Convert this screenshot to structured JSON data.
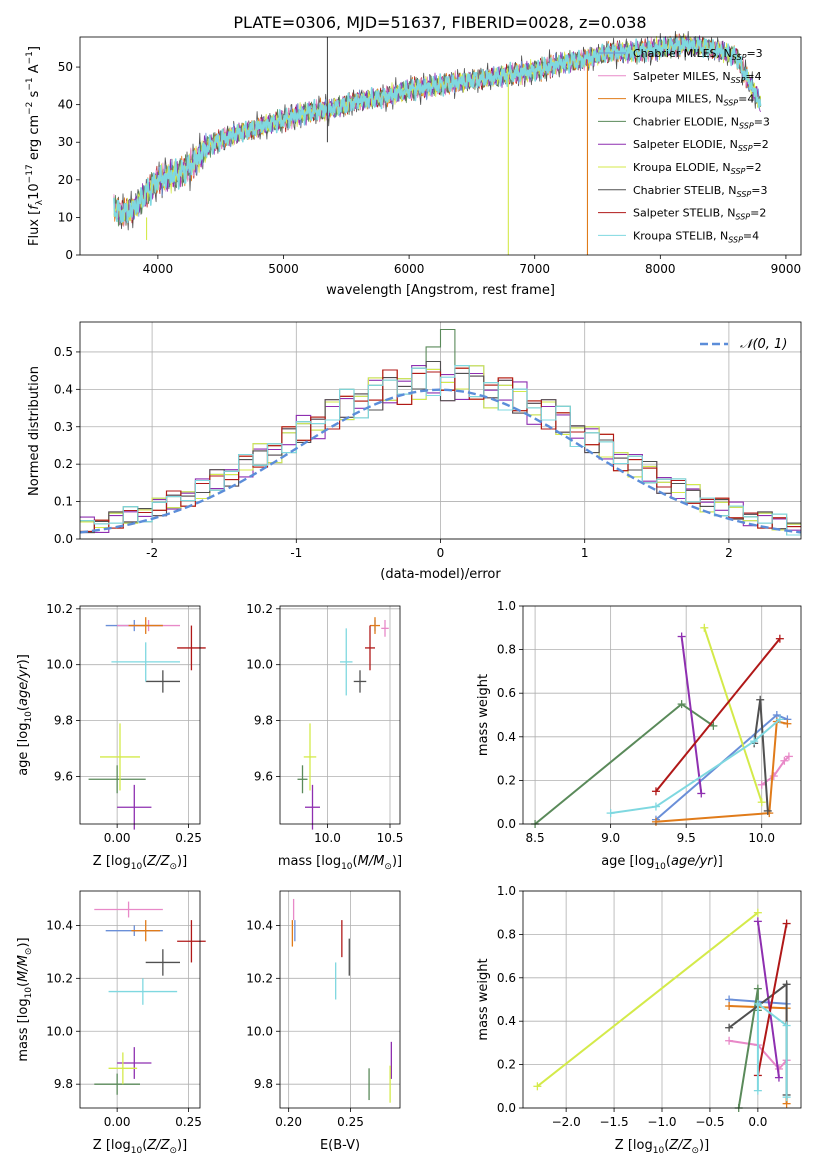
{
  "figure": {
    "title": "PLATE=0306, MJD=51637, FIBERID=0028, z=0.038"
  },
  "series_styles": [
    {
      "name": "Chabrier MILES, N$_{SSP}$=3",
      "label_main": "Chabrier MILES, N",
      "label_sub": "SSP",
      "label_tail": "=3",
      "color": "#6a8fd8"
    },
    {
      "name": "Salpeter MILES, N$_{SSP}$=4",
      "label_main": "Salpeter MILES, N",
      "label_sub": "SSP",
      "label_tail": "=4",
      "color": "#e889c8"
    },
    {
      "name": "Kroupa MILES, N$_{SSP}$=4",
      "label_main": "Kroupa MILES, N",
      "label_sub": "SSP",
      "label_tail": "=4",
      "color": "#e07b1a"
    },
    {
      "name": "Chabrier ELODIE, N$_{SSP}$=3",
      "label_main": "Chabrier ELODIE, N",
      "label_sub": "SSP",
      "label_tail": "=3",
      "color": "#5a8a5a"
    },
    {
      "name": "Salpeter ELODIE, N$_{SSP}$=2",
      "label_main": "Salpeter ELODIE, N",
      "label_sub": "SSP",
      "label_tail": "=2",
      "color": "#8e2fb0"
    },
    {
      "name": "Kroupa ELODIE, N$_{SSP}$=2",
      "label_main": "Kroupa ELODIE, N",
      "label_sub": "SSP",
      "label_tail": "=2",
      "color": "#d4ea4a"
    },
    {
      "name": "Chabrier STELIB, N$_{SSP}$=3",
      "label_main": "Chabrier STELIB, N",
      "label_sub": "SSP",
      "label_tail": "=3",
      "color": "#505050"
    },
    {
      "name": "Salpeter STELIB, N$_{SSP}$=2",
      "label_main": "Salpeter STELIB, N",
      "label_sub": "SSP",
      "label_tail": "=2",
      "color": "#b01818"
    },
    {
      "name": "Kroupa STELIB, N$_{SSP}$=4",
      "label_main": "Kroupa STELIB, N",
      "label_sub": "SSP",
      "label_tail": "=4",
      "color": "#7fd8e0"
    }
  ],
  "chart_data": [
    {
      "id": "spectrum",
      "type": "line",
      "xlabel": "wavelength [Angstrom, rest frame]",
      "ylabel": "Flux [f_λ10^-17 erg cm^-2 s^-1 A^-1]",
      "xlim": [
        3380,
        9120
      ],
      "ylim": [
        0,
        58
      ],
      "xticks": [
        4000,
        5000,
        6000,
        7000,
        8000,
        9000
      ],
      "yticks": [
        0,
        10,
        20,
        30,
        40,
        50
      ],
      "grid": false,
      "legend": "top-right",
      "continuum": {
        "x": [
          3650,
          3700,
          3800,
          3900,
          4000,
          4100,
          4200,
          4300,
          4400,
          4600,
          4800,
          5000,
          5200,
          5400,
          5600,
          5800,
          6000,
          6200,
          6400,
          6600,
          6800,
          7000,
          7200,
          7400,
          7600,
          7800,
          8000,
          8200,
          8400,
          8600,
          8800
        ],
        "y": [
          13,
          11,
          12,
          16,
          20,
          21,
          22,
          25,
          29,
          32,
          34,
          36,
          38,
          39,
          41,
          42,
          44,
          45,
          46,
          47,
          48,
          49,
          51,
          52,
          54,
          54,
          55,
          56,
          55,
          53,
          40
        ]
      },
      "spikes": [
        {
          "series": 6,
          "x": 5350,
          "y_from": 30,
          "y_to": 58
        },
        {
          "series": 5,
          "x": 3910,
          "y_from": 10,
          "y_to": 4
        },
        {
          "series": 5,
          "x": 6790,
          "y_from": 48,
          "y_to": 0
        },
        {
          "series": 2,
          "x": 7420,
          "y_from": 52,
          "y_to": 0
        }
      ]
    },
    {
      "id": "residual-histogram",
      "type": "step",
      "xlabel": "(data-model)/error",
      "ylabel": "Normed distribution",
      "xlim": [
        -2.5,
        2.5
      ],
      "ylim": [
        0,
        0.58
      ],
      "xticks": [
        -2,
        -1,
        0,
        1,
        2
      ],
      "yticks": [
        0.0,
        0.1,
        0.2,
        0.3,
        0.4,
        0.5
      ],
      "grid": true,
      "bin_width": 0.1,
      "normal_curve": {
        "label": "𝒩(0, 1)",
        "mean": 0,
        "sigma": 1,
        "color": "#5b8dd9"
      },
      "bin_jitter": [
        0.02,
        -0.015,
        0.03,
        -0.025,
        0.01,
        0.035,
        -0.02,
        0.015,
        -0.03,
        0.025,
        0.0,
        -0.01,
        0.04,
        -0.035,
        0.02
      ]
    },
    {
      "id": "age-vs-Z",
      "type": "errorbar",
      "xlabel": "Z [log10(Z/Z⊙)]",
      "ylabel": "age  [log10(age/yr)]",
      "xlim": [
        -0.13,
        0.29
      ],
      "ylim": [
        9.43,
        10.21
      ],
      "xticks": [
        0.0,
        0.25
      ],
      "xticklabels": [
        "0.00",
        "0.25"
      ],
      "yticks": [
        9.6,
        9.8,
        10.0,
        10.2
      ],
      "yticklabels": [
        "9.6",
        "9.8",
        "10.0",
        "10.2"
      ],
      "points": [
        {
          "series": 0,
          "x": 0.06,
          "y": 10.14,
          "xerr": 0.1,
          "yerr": 0.02
        },
        {
          "series": 1,
          "x": 0.11,
          "y": 10.14,
          "xerr": 0.11,
          "yerr": 0.02
        },
        {
          "series": 2,
          "x": 0.1,
          "y": 10.14,
          "xerr": 0.06,
          "yerr": 0.03
        },
        {
          "series": 3,
          "x": 0.0,
          "y": 9.59,
          "xerr": 0.1,
          "yerr": 0.05
        },
        {
          "series": 4,
          "x": 0.06,
          "y": 9.49,
          "xerr": 0.06,
          "yerr": 0.08
        },
        {
          "series": 5,
          "x": 0.01,
          "y": 9.67,
          "xerr": 0.07,
          "yerr": 0.12
        },
        {
          "series": 6,
          "x": 0.16,
          "y": 9.94,
          "xerr": 0.06,
          "yerr": 0.04
        },
        {
          "series": 7,
          "x": 0.26,
          "y": 10.06,
          "xerr": 0.05,
          "yerr": 0.08
        },
        {
          "series": 8,
          "x": 0.1,
          "y": 10.01,
          "xerr": 0.12,
          "yerr": 0.07
        }
      ]
    },
    {
      "id": "age-vs-mass",
      "type": "errorbar",
      "xlabel": "mass [log10(M/M⊙)]",
      "ylabel": "",
      "xlim": [
        9.62,
        10.58
      ],
      "ylim": [
        9.43,
        10.21
      ],
      "xticks": [
        10.0,
        10.5
      ],
      "xticklabels": [
        "10.0",
        "10.5"
      ],
      "yticks": [
        9.6,
        9.8,
        10.0,
        10.2
      ],
      "yticklabels": [
        "9.6",
        "9.8",
        "10.0",
        "10.2"
      ],
      "points": [
        {
          "series": 0,
          "x": 10.38,
          "y": 10.14,
          "xerr": 0.0,
          "yerr": 0.02
        },
        {
          "series": 1,
          "x": 10.46,
          "y": 10.13,
          "xerr": 0.03,
          "yerr": 0.03
        },
        {
          "series": 2,
          "x": 10.38,
          "y": 10.14,
          "xerr": 0.04,
          "yerr": 0.03
        },
        {
          "series": 3,
          "x": 9.8,
          "y": 9.59,
          "xerr": 0.04,
          "yerr": 0.05
        },
        {
          "series": 4,
          "x": 9.88,
          "y": 9.49,
          "xerr": 0.06,
          "yerr": 0.08
        },
        {
          "series": 5,
          "x": 9.86,
          "y": 9.67,
          "xerr": 0.05,
          "yerr": 0.12
        },
        {
          "series": 6,
          "x": 10.26,
          "y": 9.94,
          "xerr": 0.05,
          "yerr": 0.04
        },
        {
          "series": 7,
          "x": 10.34,
          "y": 10.06,
          "xerr": 0.04,
          "yerr": 0.08
        },
        {
          "series": 8,
          "x": 10.15,
          "y": 10.01,
          "xerr": 0.05,
          "yerr": 0.12
        }
      ]
    },
    {
      "id": "weight-vs-age",
      "type": "line",
      "xlabel": "age  [log10(age/yr)]",
      "ylabel": "mass weight",
      "xlim": [
        8.42,
        10.26
      ],
      "ylim": [
        0,
        1.0
      ],
      "xticks": [
        8.5,
        9.0,
        9.5,
        10.0
      ],
      "xticklabels": [
        "8.5",
        "9.0",
        "9.5",
        "10.0"
      ],
      "yticks": [
        0.0,
        0.2,
        0.4,
        0.6,
        0.8,
        1.0
      ],
      "grid": true,
      "series": [
        {
          "series": 0,
          "x": [
            9.3,
            10.1,
            10.17
          ],
          "y": [
            0.02,
            0.5,
            0.48
          ]
        },
        {
          "series": 1,
          "x": [
            10.0,
            10.08,
            10.15,
            10.18
          ],
          "y": [
            0.18,
            0.22,
            0.29,
            0.31
          ]
        },
        {
          "series": 2,
          "x": [
            9.3,
            10.05,
            10.1,
            10.17
          ],
          "y": [
            0.01,
            0.05,
            0.47,
            0.46
          ]
        },
        {
          "series": 3,
          "x": [
            8.5,
            9.47,
            9.68
          ],
          "y": [
            0.0,
            0.55,
            0.45
          ]
        },
        {
          "series": 4,
          "x": [
            9.47,
            9.6
          ],
          "y": [
            0.86,
            0.14
          ]
        },
        {
          "series": 5,
          "x": [
            9.62,
            10.0
          ],
          "y": [
            0.9,
            0.1
          ]
        },
        {
          "series": 6,
          "x": [
            9.95,
            9.99,
            10.04
          ],
          "y": [
            0.37,
            0.57,
            0.06
          ]
        },
        {
          "series": 7,
          "x": [
            9.3,
            10.12
          ],
          "y": [
            0.15,
            0.85
          ]
        },
        {
          "series": 8,
          "x": [
            9.0,
            9.3,
            9.95,
            10.12
          ],
          "y": [
            0.05,
            0.08,
            0.38,
            0.48
          ]
        }
      ]
    },
    {
      "id": "mass-vs-Z",
      "type": "errorbar",
      "xlabel": "Z [log10(Z/Z⊙)]",
      "ylabel": "mass [log10(M/M⊙)]",
      "xlim": [
        -0.13,
        0.29
      ],
      "ylim": [
        9.71,
        10.53
      ],
      "xticks": [
        0.0,
        0.25
      ],
      "xticklabels": [
        "0.00",
        "0.25"
      ],
      "yticks": [
        9.8,
        10.0,
        10.2,
        10.4
      ],
      "yticklabels": [
        "9.8",
        "10.0",
        "10.2",
        "10.4"
      ],
      "points": [
        {
          "series": 0,
          "x": 0.06,
          "y": 10.38,
          "xerr": 0.1,
          "yerr": 0.02
        },
        {
          "series": 1,
          "x": 0.04,
          "y": 10.46,
          "xerr": 0.12,
          "yerr": 0.03
        },
        {
          "series": 2,
          "x": 0.1,
          "y": 10.38,
          "xerr": 0.05,
          "yerr": 0.04
        },
        {
          "series": 3,
          "x": 0.0,
          "y": 9.8,
          "xerr": 0.08,
          "yerr": 0.04
        },
        {
          "series": 4,
          "x": 0.06,
          "y": 9.88,
          "xerr": 0.06,
          "yerr": 0.06
        },
        {
          "series": 5,
          "x": 0.02,
          "y": 9.86,
          "xerr": 0.05,
          "yerr": 0.06
        },
        {
          "series": 6,
          "x": 0.16,
          "y": 10.26,
          "xerr": 0.06,
          "yerr": 0.05
        },
        {
          "series": 7,
          "x": 0.26,
          "y": 10.34,
          "xerr": 0.05,
          "yerr": 0.08
        },
        {
          "series": 8,
          "x": 0.09,
          "y": 10.15,
          "xerr": 0.12,
          "yerr": 0.05
        }
      ]
    },
    {
      "id": "mass-vs-ebv",
      "type": "errorbar",
      "xlabel": "E(B-V)",
      "ylabel": "",
      "xlim": [
        0.193,
        0.29
      ],
      "ylim": [
        9.71,
        10.53
      ],
      "xticks": [
        0.2,
        0.25
      ],
      "xticklabels": [
        "0.20",
        "0.25"
      ],
      "yticks": [
        9.8,
        10.0,
        10.2,
        10.4
      ],
      "yticklabels": [
        "9.8",
        "10.0",
        "10.2",
        "10.4"
      ],
      "points": [
        {
          "series": 0,
          "x": 0.205,
          "y": 10.38,
          "xerr": 0.0,
          "yerr": 0.04
        },
        {
          "series": 1,
          "x": 0.204,
          "y": 10.46,
          "xerr": 0.0,
          "yerr": 0.04
        },
        {
          "series": 2,
          "x": 0.203,
          "y": 10.37,
          "xerr": 0.0,
          "yerr": 0.05
        },
        {
          "series": 3,
          "x": 0.265,
          "y": 9.8,
          "xerr": 0.0,
          "yerr": 0.06
        },
        {
          "series": 4,
          "x": 0.283,
          "y": 9.89,
          "xerr": 0.0,
          "yerr": 0.07
        },
        {
          "series": 5,
          "x": 0.282,
          "y": 9.8,
          "xerr": 0.0,
          "yerr": 0.07
        },
        {
          "series": 6,
          "x": 0.249,
          "y": 10.28,
          "xerr": 0.0,
          "yerr": 0.07
        },
        {
          "series": 7,
          "x": 0.243,
          "y": 10.35,
          "xerr": 0.0,
          "yerr": 0.07
        },
        {
          "series": 8,
          "x": 0.238,
          "y": 10.19,
          "xerr": 0.0,
          "yerr": 0.07
        }
      ]
    },
    {
      "id": "weight-vs-Z",
      "type": "line",
      "xlabel": "Z [log10(Z/Z⊙)]",
      "ylabel": "mass weight",
      "xlim": [
        -2.45,
        0.45
      ],
      "ylim": [
        0,
        1.0
      ],
      "xticks": [
        -2.0,
        -1.5,
        -1.0,
        -0.5,
        0.0
      ],
      "xticklabels": [
        "−2.0",
        "−1.5",
        "−1.0",
        "−0.5",
        "0.0"
      ],
      "yticks": [
        0.0,
        0.2,
        0.4,
        0.6,
        0.8,
        1.0
      ],
      "grid": true,
      "series": [
        {
          "series": 0,
          "x": [
            -0.3,
            0.3
          ],
          "y": [
            0.5,
            0.48
          ]
        },
        {
          "series": 1,
          "x": [
            -0.3,
            0.0,
            0.22,
            0.3
          ],
          "y": [
            0.31,
            0.29,
            0.18,
            0.22
          ]
        },
        {
          "series": 2,
          "x": [
            -0.3,
            0.3,
            0.3
          ],
          "y": [
            0.47,
            0.46,
            0.02
          ]
        },
        {
          "series": 3,
          "x": [
            -0.2,
            0.0,
            0.0
          ],
          "y": [
            0.0,
            0.55,
            0.45
          ]
        },
        {
          "series": 4,
          "x": [
            0.0,
            0.22
          ],
          "y": [
            0.86,
            0.14
          ]
        },
        {
          "series": 5,
          "x": [
            -2.3,
            0.0
          ],
          "y": [
            0.1,
            0.9
          ]
        },
        {
          "series": 6,
          "x": [
            -0.3,
            0.3,
            0.3
          ],
          "y": [
            0.37,
            0.57,
            0.06
          ]
        },
        {
          "series": 7,
          "x": [
            0.0,
            0.3
          ],
          "y": [
            0.15,
            0.85
          ]
        },
        {
          "series": 8,
          "x": [
            0.0,
            0.0,
            0.3,
            0.3
          ],
          "y": [
            0.08,
            0.48,
            0.38,
            0.05
          ]
        }
      ]
    }
  ]
}
